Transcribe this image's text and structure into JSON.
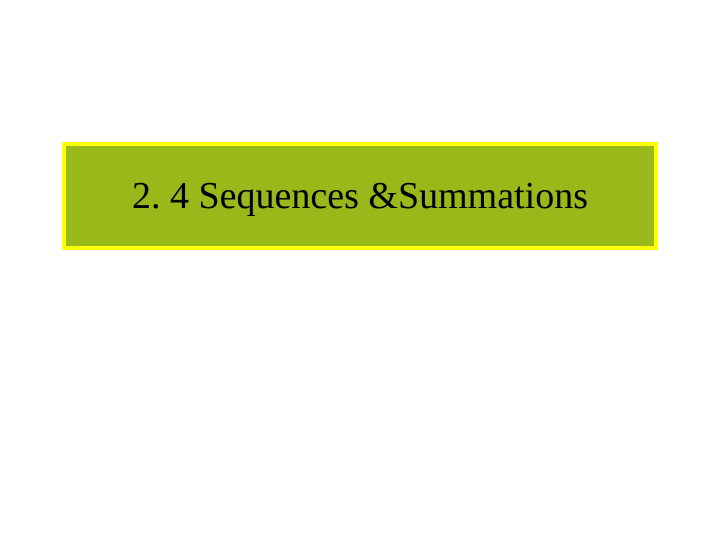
{
  "slide": {
    "title": "2. 4 Sequences &Summations",
    "title_box": {
      "background_color": "#99b91a",
      "border_color": "#ffff00",
      "border_width": 4,
      "text_color": "#000000",
      "font_size": 38,
      "font_family": "Times New Roman"
    },
    "background_color": "#ffffff"
  }
}
